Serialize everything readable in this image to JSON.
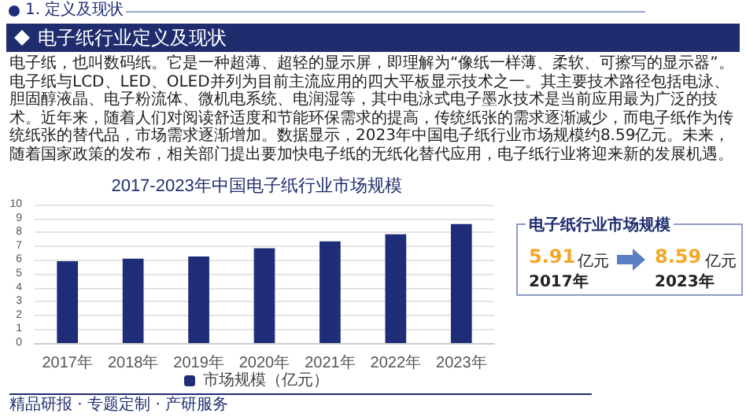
{
  "chart_data": {
    "type": "bar",
    "title": "2017-2023年中国电子纸行业市场规模",
    "categories": [
      "2017年",
      "2018年",
      "2019年",
      "2020年",
      "2021年",
      "2022年",
      "2023年"
    ],
    "series": [
      {
        "name": "市场规模（亿元）",
        "color": "#1f2d78",
        "values": [
          5.91,
          6.1,
          6.25,
          6.85,
          7.35,
          7.85,
          8.59
        ]
      }
    ],
    "ylim": [
      0,
      10
    ],
    "yticks": [
      0,
      1,
      2,
      3,
      4,
      5,
      6,
      7,
      8,
      9,
      10
    ],
    "grid": "y",
    "legend": "bottom",
    "annotations": [
      "1. 定义及现状",
      "电子纸行业定义及现状",
      "电子纸，也叫数码纸。它是一种超薄、超轻的显示屏，即理解为“像纸一样薄、柔软、可擦写的显示器”。电子纸与LCD、LED、OLED并列为目前主流应用的四大平板显示技术之一。其主要技术路径包括电泳、胆固醇液晶、电子粉流体、微机电系统、电润湿等，其中电泳式电子墨水技术是当前应用最为广泛的技术。近年来，随着人们对阅读舒适度和节能环保需求的提高，传统纸张的需求逐渐减少，而电子纸作为传统纸张的替代品，市场需求逐渐增加。数据显示，2023年中国电子纸行业市场规模约8.59亿元。未来，随着国家政策的发布，相关部门提出要加快电子纸的无纸化替代应用，电子纸行业将迎来新的发展机遇。",
      "电子纸行业市场规模",
      "5.91",
      "亿元",
      "2017年",
      "8.59",
      "亿元",
      "2023年",
      "精品研报 · 专题定制 · 产研服务"
    ]
  }
}
